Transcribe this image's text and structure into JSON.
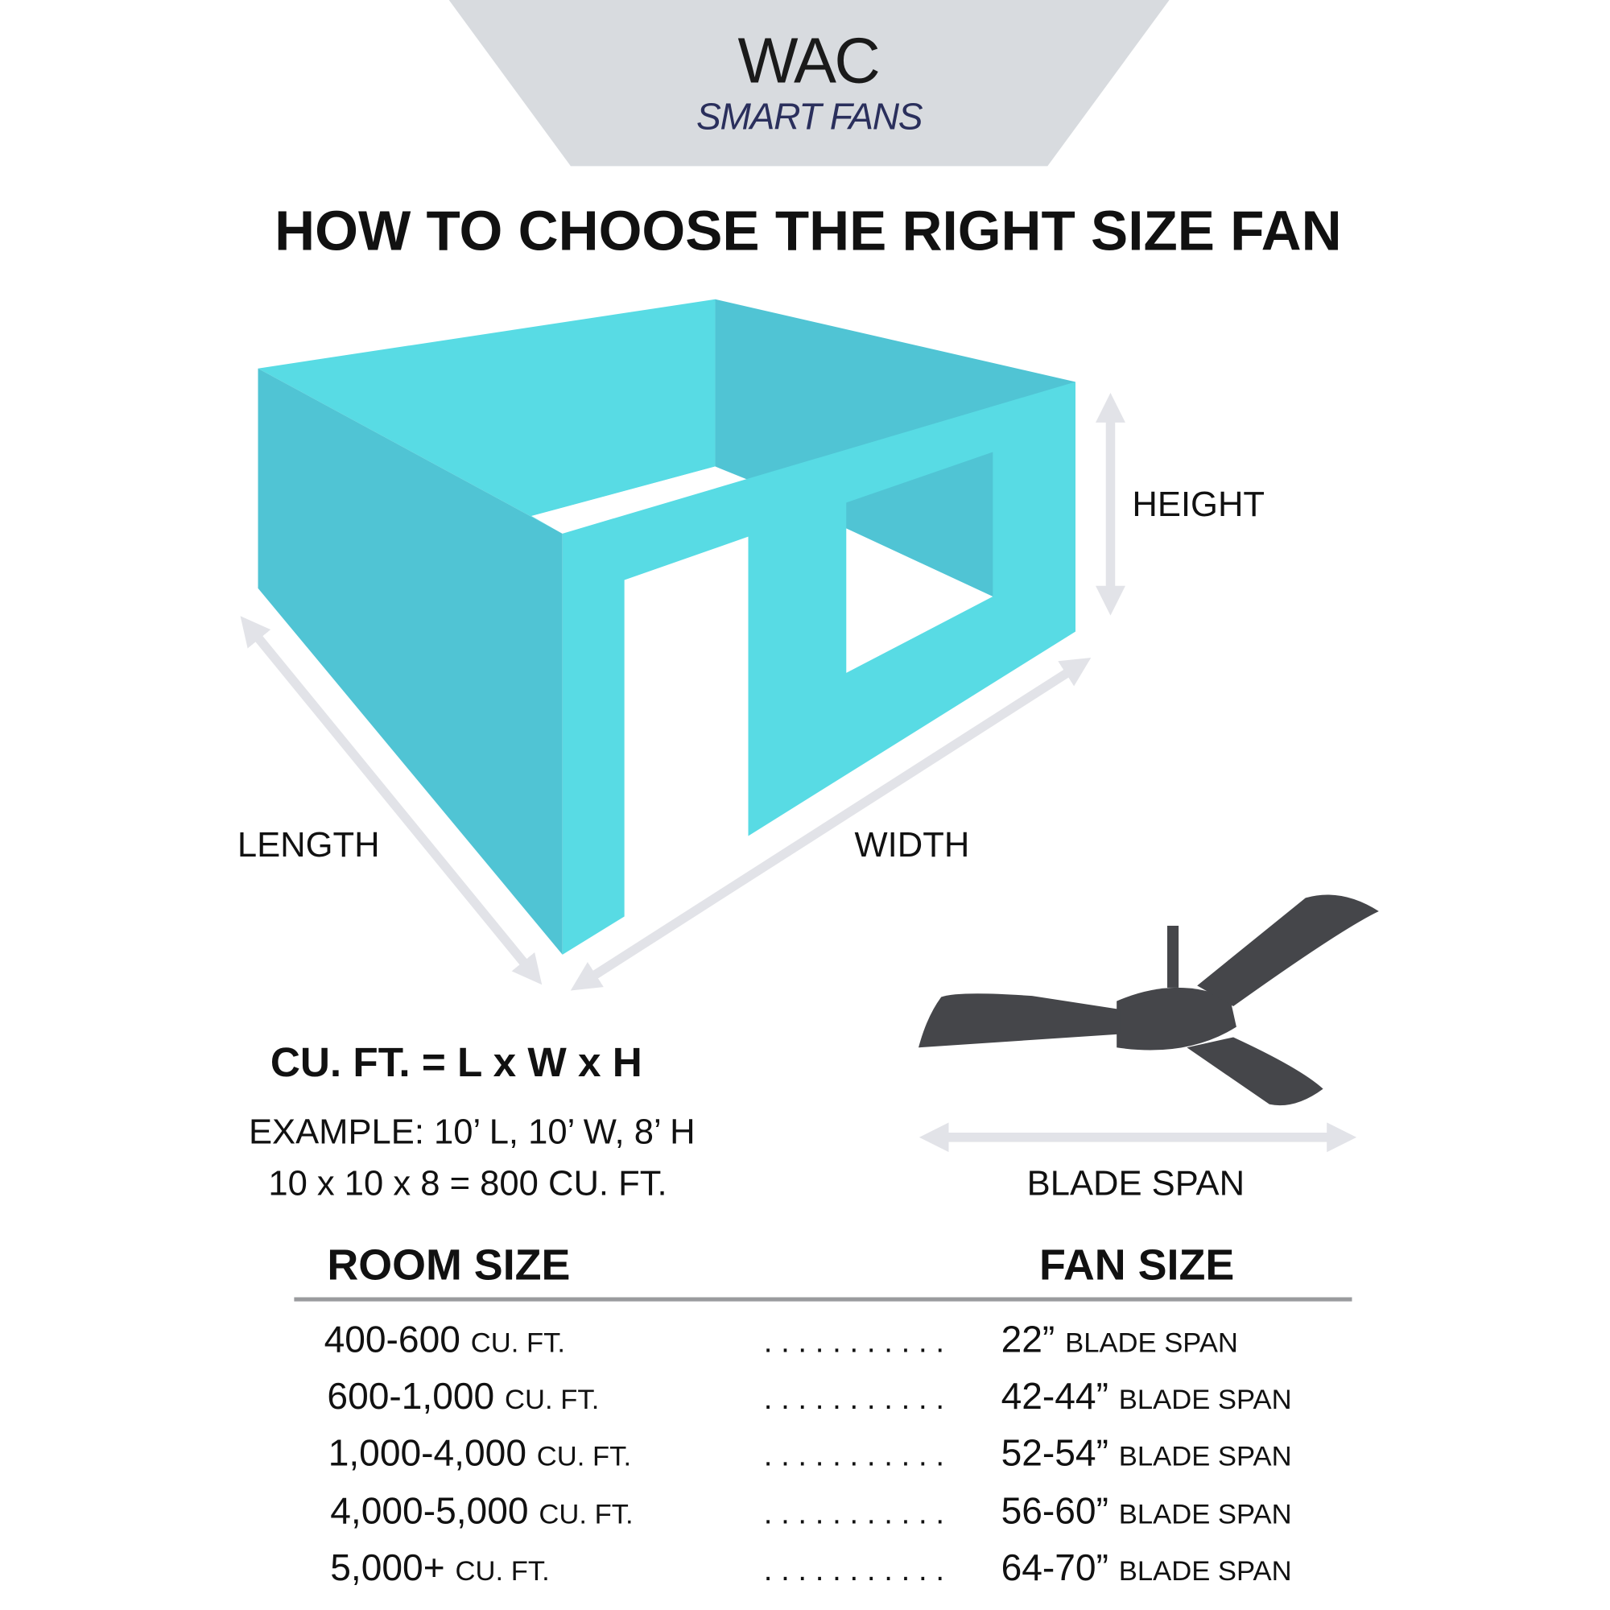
{
  "logo": {
    "brand": "WAC",
    "sub": "SMART FANS"
  },
  "title": "HOW TO CHOOSE THE RIGHT SIZE FAN",
  "diagram": {
    "height_label": "HEIGHT",
    "length_label": "LENGTH",
    "width_label": "WIDTH",
    "blade_span_label": "BLADE SPAN",
    "colors": {
      "wall_light": "#58dbe4",
      "wall_dark": "#50c4d4",
      "arrow": "#e2e3e8",
      "fan": "#45464a",
      "logo_bg": "#d8dbdf"
    }
  },
  "formula": {
    "main": "CU. FT. = L x W x H",
    "example": "EXAMPLE: 10’ L, 10’ W, 8’ H",
    "calc": "10 x 10 x 8 = 800 CU. FT."
  },
  "table": {
    "headers": {
      "room": "ROOM SIZE",
      "fan": "FAN SIZE"
    },
    "dots": ". . . . . . . . . . .",
    "rows": [
      {
        "room": "400-600",
        "room_unit": "CU. FT.",
        "fan": "22”",
        "fan_unit": "BLADE SPAN"
      },
      {
        "room": "600-1,000",
        "room_unit": "CU. FT.",
        "fan": "42-44”",
        "fan_unit": "BLADE SPAN"
      },
      {
        "room": "1,000-4,000",
        "room_unit": "CU. FT.",
        "fan": "52-54”",
        "fan_unit": "BLADE SPAN"
      },
      {
        "room": "4,000-5,000",
        "room_unit": "CU. FT.",
        "fan": "56-60”",
        "fan_unit": "BLADE SPAN"
      },
      {
        "room": "5,000+",
        "room_unit": "CU. FT.",
        "fan": "64-70”",
        "fan_unit": "BLADE SPAN"
      }
    ]
  }
}
